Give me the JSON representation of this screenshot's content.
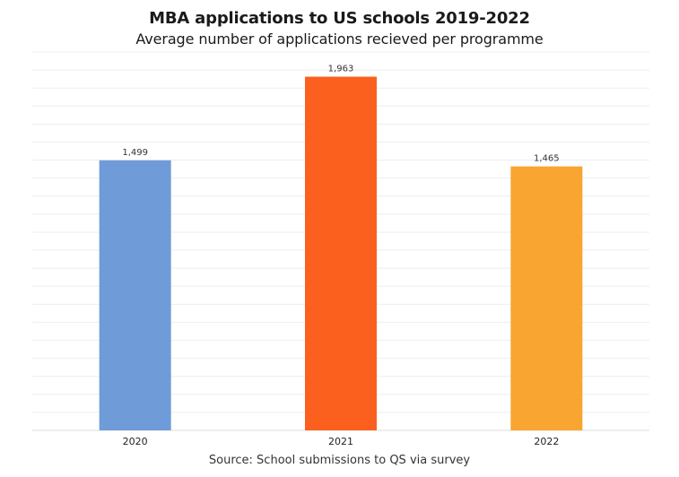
{
  "chart_data": {
    "type": "bar",
    "title": "MBA applications to US schools 2019-2022",
    "subtitle": "Average number of applications recieved per programme",
    "categories": [
      "2020",
      "2021",
      "2022"
    ],
    "values": [
      1499,
      1963,
      1465
    ],
    "value_labels": [
      "1,499",
      "1,963",
      "1,465"
    ],
    "colors": [
      "#6f9bd8",
      "#fb601f",
      "#f8a531"
    ],
    "ylim": [
      0,
      2100
    ],
    "grid": true,
    "legend": "none"
  },
  "source": "Source: School submissions to QS via survey"
}
